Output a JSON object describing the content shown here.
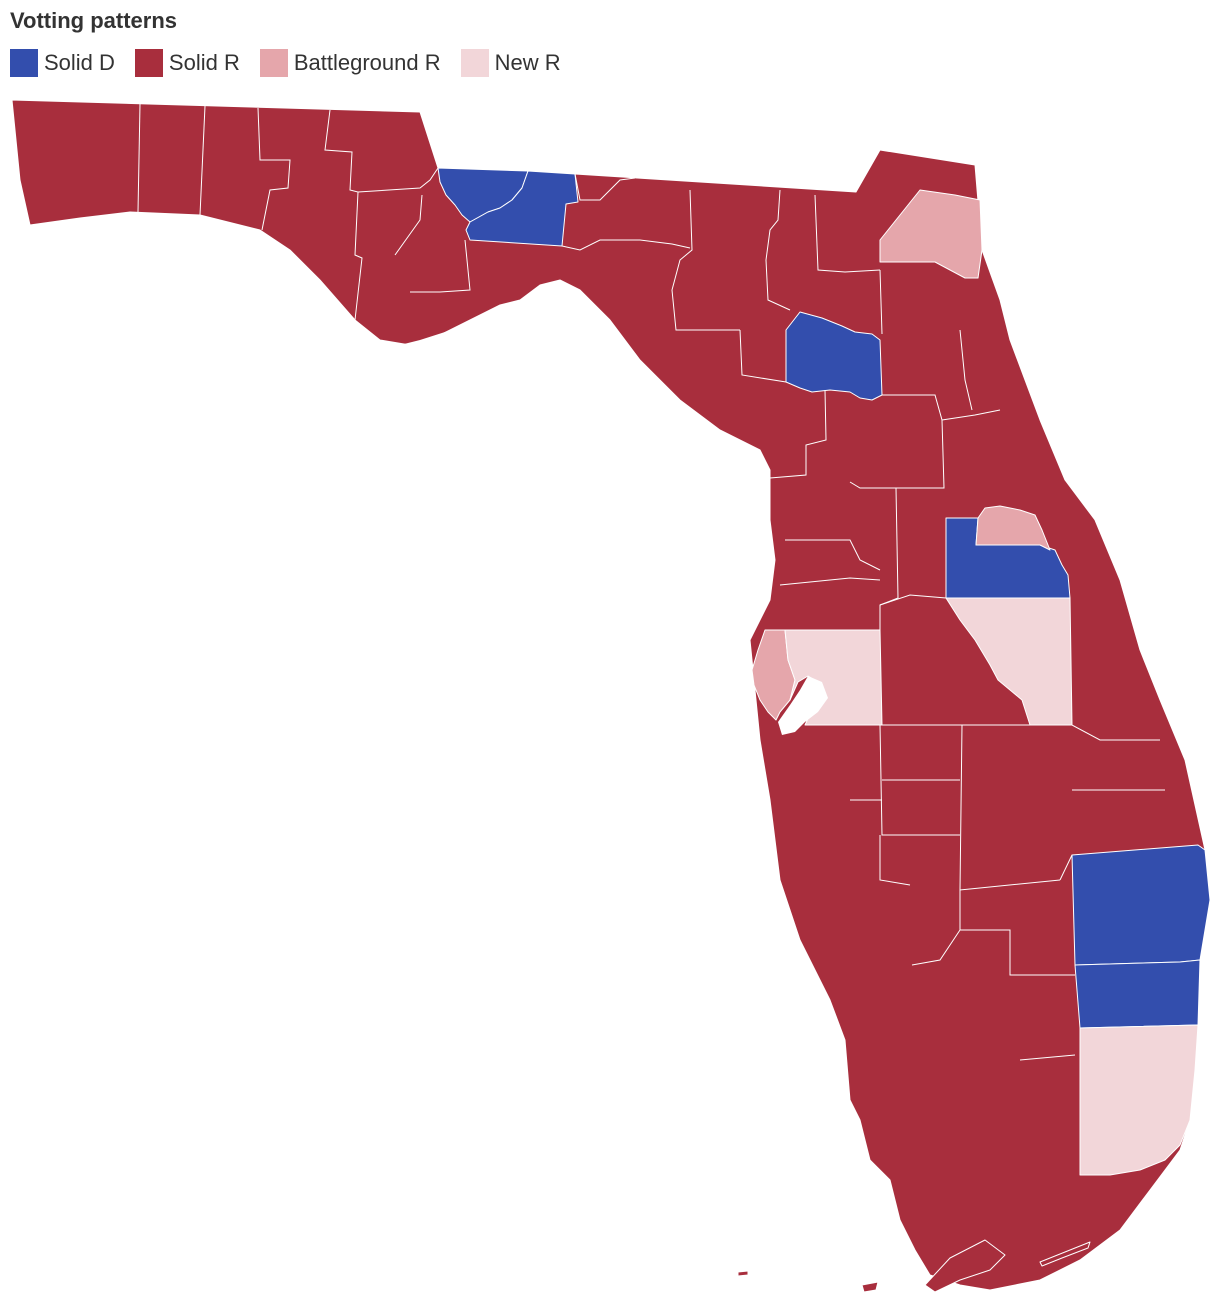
{
  "title": "Votting patterns",
  "legend": [
    {
      "key": "solid_d",
      "label": "Solid D",
      "color": "#334ead"
    },
    {
      "key": "solid_r",
      "label": "Solid R",
      "color": "#a82e3d"
    },
    {
      "key": "battleground_r",
      "label": "Battleground R",
      "color": "#e5a6ab"
    },
    {
      "key": "new_r",
      "label": "New R",
      "color": "#f2d6d9"
    }
  ],
  "colors": {
    "solid_d": "#334ead",
    "solid_r": "#a82e3d",
    "battleground_r": "#e5a6ab",
    "new_r": "#f2d6d9",
    "border": "#ffffff"
  },
  "map": {
    "region": "Florida",
    "unit": "county",
    "counties_by_category": {
      "solid_d": [
        "Gadsden",
        "Leon",
        "Alachua",
        "Orange",
        "Broward",
        "Palm Beach"
      ],
      "battleground_r": [
        "Duval",
        "Seminole",
        "Pinellas"
      ],
      "new_r": [
        "Hillsborough",
        "Osceola",
        "Miami-Dade"
      ]
    },
    "default_category": "solid_r"
  }
}
